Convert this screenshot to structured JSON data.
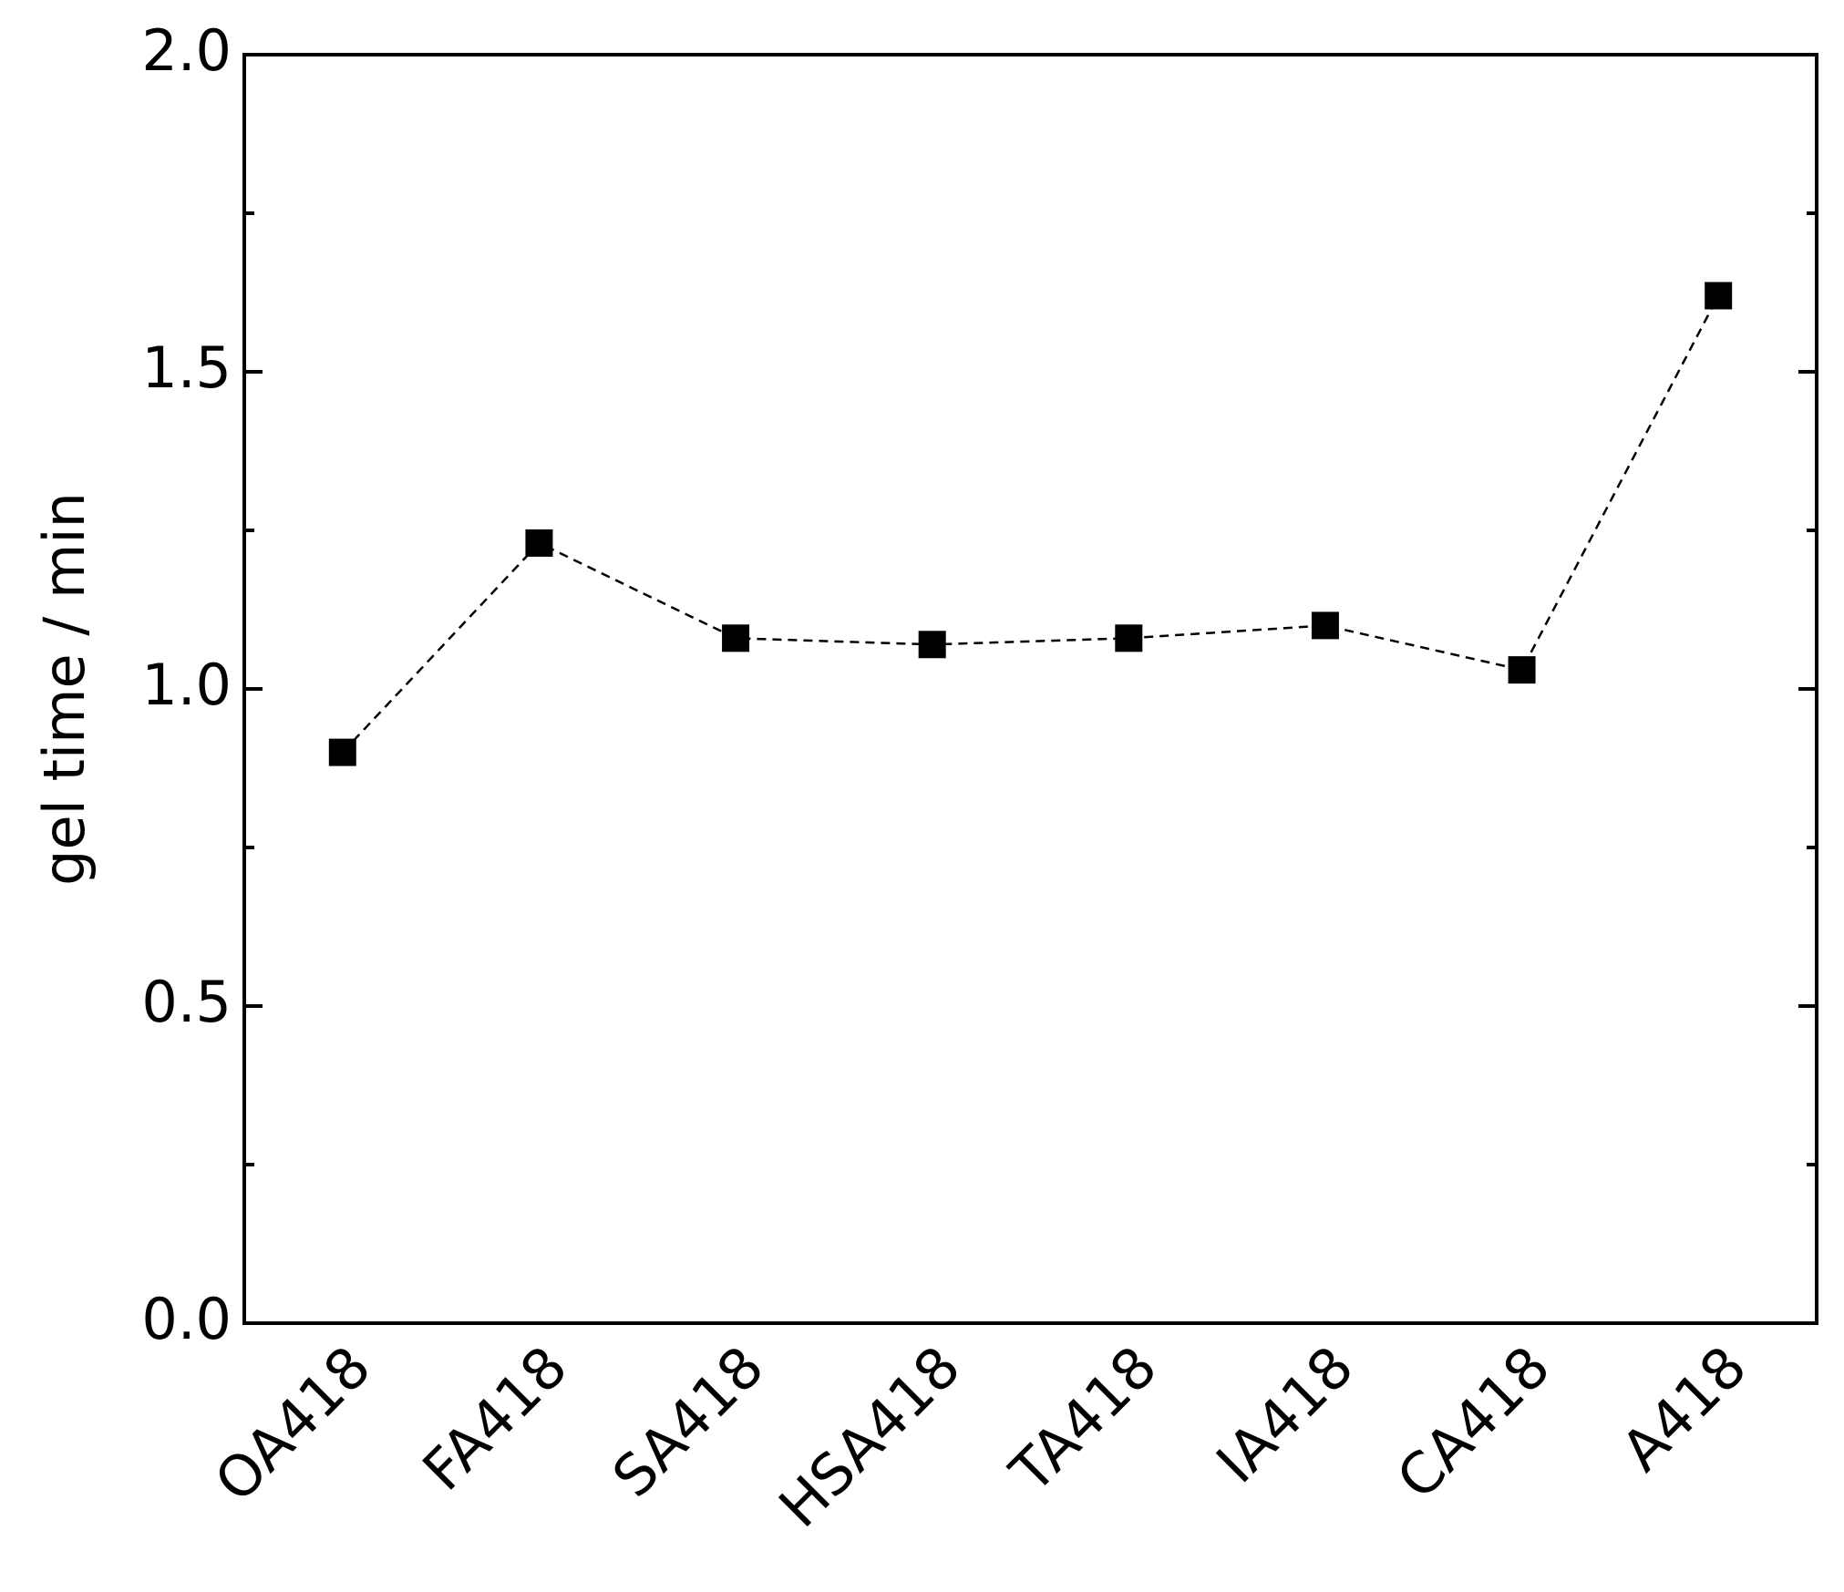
{
  "chart_data": {
    "type": "line",
    "y_label": "gel time / min",
    "categories": [
      "OA418",
      "FA418",
      "SA418",
      "HSA418",
      "TA418",
      "IA418",
      "CA418",
      "A418"
    ],
    "series": [
      {
        "color": "#000000",
        "values": [
          0.9,
          1.23,
          1.08,
          1.07,
          1.08,
          1.1,
          1.03,
          1.62
        ]
      }
    ],
    "ylim": [
      0,
      2
    ],
    "yticks": [
      {
        "value": 0,
        "label": "0.0"
      },
      {
        "value": 0.5,
        "label": "0.5"
      },
      {
        "value": 1,
        "label": "1.0"
      },
      {
        "value": 1.5,
        "label": "1.5"
      },
      {
        "value": 2,
        "label": "2.0"
      }
    ],
    "yminor": [
      0.25,
      0.75,
      1.25,
      1.75
    ],
    "line_style": "dashed",
    "marker": "square",
    "grid": false
  }
}
